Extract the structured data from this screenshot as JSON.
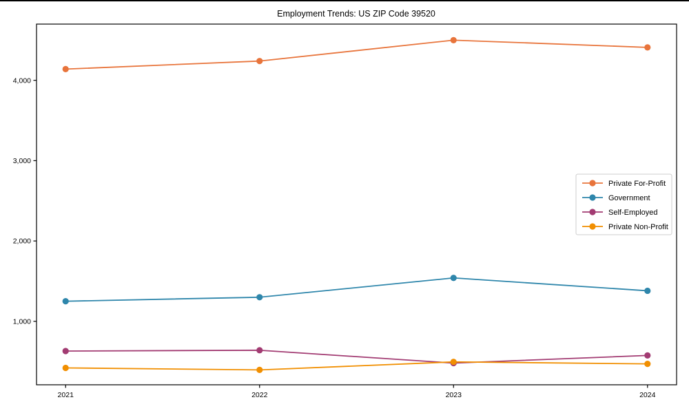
{
  "figure": {
    "background": "#ffffff",
    "top_edge_color": "#000000"
  },
  "chart_data": {
    "type": "line",
    "title": "Employment Trends: US ZIP Code 39520",
    "xlabel": "",
    "ylabel": "",
    "x": [
      2021,
      2022,
      2023,
      2024
    ],
    "x_tick_labels": [
      "2021",
      "2022",
      "2023",
      "2024"
    ],
    "y_ticks": [
      {
        "value": 1000,
        "label": "1,000"
      },
      {
        "value": 2000,
        "label": "2,000"
      },
      {
        "value": 3000,
        "label": "3,000"
      },
      {
        "value": 4000,
        "label": "4,000"
      }
    ],
    "series": [
      {
        "name": "Private For-Profit",
        "color": "#E8743B",
        "values": [
          4140,
          4240,
          4500,
          4410
        ]
      },
      {
        "name": "Government",
        "color": "#2E86AB",
        "values": [
          1250,
          1300,
          1540,
          1380
        ]
      },
      {
        "name": "Self-Employed",
        "color": "#A23B72",
        "values": [
          630,
          640,
          480,
          575
        ]
      },
      {
        "name": "Private Non-Profit",
        "color": "#F18F01",
        "values": [
          420,
          395,
          495,
          470
        ]
      }
    ],
    "xlim": [
      2020.85,
      2024.15
    ],
    "ylim": [
      210,
      4700
    ],
    "grid": false,
    "legend_position": "center right",
    "axis_color": "#000000",
    "marker": "circle",
    "marker_radius": 4.6,
    "line_width": 1.8
  }
}
